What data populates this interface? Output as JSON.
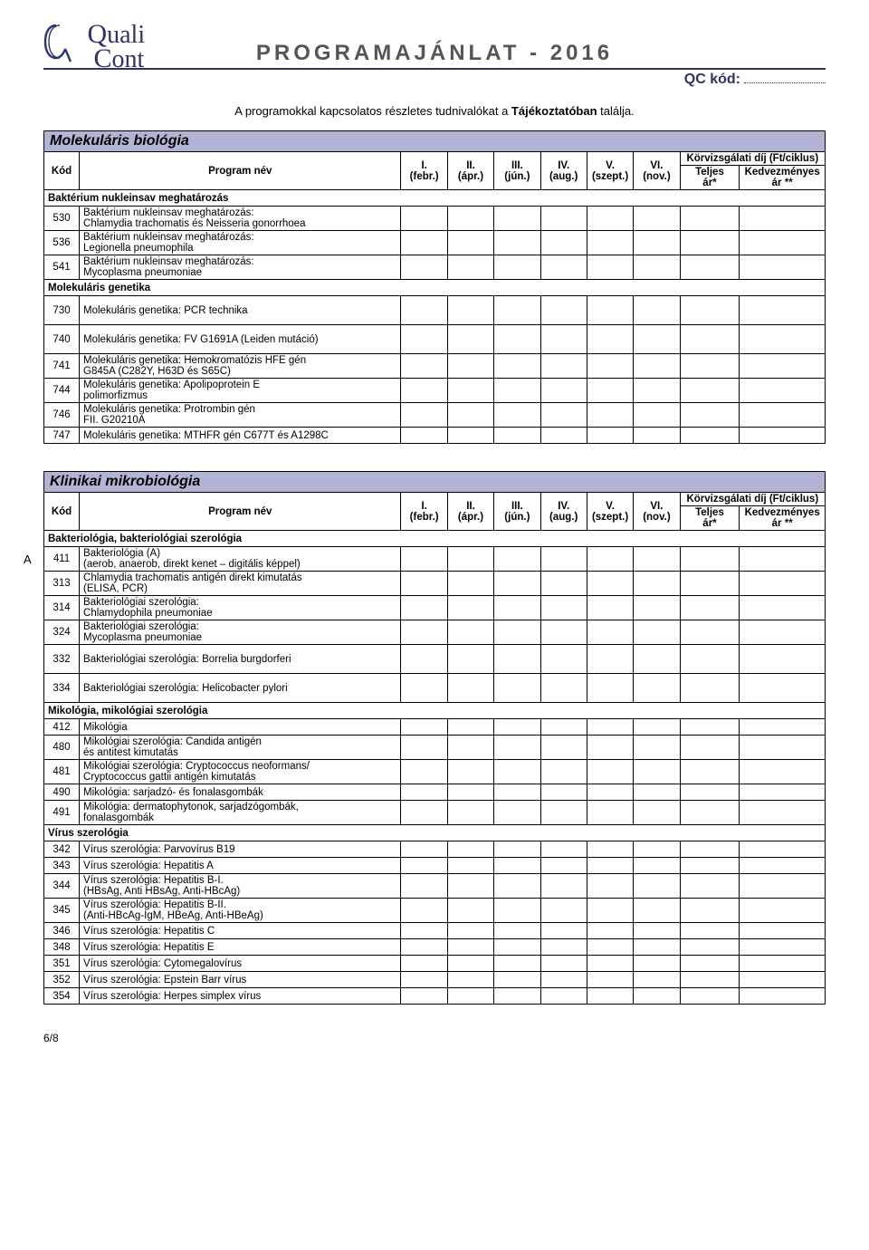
{
  "header": {
    "logo_top": "uali",
    "logo_bot": "ont",
    "logo_q_top": "Q",
    "logo_c_bot": "C",
    "title": "PROGRAMAJÁNLAT - 2016",
    "qc_label": "QC kód:"
  },
  "intro_prefix": "A programokkal kapcsolatos részletes tudnivalókat a ",
  "intro_bold": "Tájékoztatóban",
  "intro_suffix": " találja.",
  "columns": {
    "kod": "Kód",
    "program": "Program név",
    "m1": "I.",
    "m1s": "(febr.)",
    "m2": "II.",
    "m2s": "(ápr.)",
    "m3": "III.",
    "m3s": "(jún.)",
    "m4": "IV.",
    "m4s": "(aug.)",
    "m5": "V.",
    "m5s": "(szept.)",
    "m6": "VI.",
    "m6s": "(nov.)",
    "fee_title": "Körvizsgálati díj (Ft/ciklus)",
    "teljes": "Teljes",
    "teljes_sub": "ár*",
    "kedv": "Kedvezményes",
    "kedv_sub": "ár **"
  },
  "section1_title": "Molekuláris biológia",
  "section1_sub1": "Baktérium nukleinsav meghatározás",
  "section1_rows_a": [
    {
      "code": "530",
      "name": "Baktérium nukleinsav meghatározás:\nChlamydia trachomatis és Neisseria gonorrhoea"
    },
    {
      "code": "536",
      "name": "Baktérium nukleinsav meghatározás:\nLegionella pneumophila"
    },
    {
      "code": "541",
      "name": "Baktérium nukleinsav meghatározás:\nMycoplasma pneumoniae"
    }
  ],
  "section1_sub2": "Molekuláris genetika",
  "section1_rows_b": [
    {
      "code": "730",
      "name": "Molekuláris genetika: PCR technika"
    },
    {
      "code": "740",
      "name": "Molekuláris genetika: FV G1691A (Leiden mutáció)"
    },
    {
      "code": "741",
      "name": "Molekuláris genetika: Hemokromatózis HFE gén\nG845A (C282Y, H63D és S65C)"
    },
    {
      "code": "744",
      "name": "Molekuláris genetika: Apolipoprotein E\npolimorfizmus"
    },
    {
      "code": "746",
      "name": "Molekuláris genetika: Protrombin gén\nFII. G20210A"
    },
    {
      "code": "747",
      "name": "Molekuláris genetika: MTHFR gén C677T és A1298C"
    }
  ],
  "section2_title": "Klinikai mikrobiológia",
  "section2_marker": "A",
  "section2_sub1": "Bakteriológia, bakteriológiai szerológia",
  "section2_rows_a": [
    {
      "code": "411",
      "name": "Bakteriológia (A)\n(aerob, anaerob, direkt kenet – digitális képpel)"
    },
    {
      "code": "313",
      "name": "Chlamydia trachomatis antigén direkt kimutatás\n(ELISA, PCR)"
    },
    {
      "code": "314",
      "name": "Bakteriológiai szerológia:\nChlamydophila pneumoniae"
    },
    {
      "code": "324",
      "name": "Bakteriológiai szerológia:\nMycoplasma pneumoniae"
    },
    {
      "code": "332",
      "name": "Bakteriológiai szerológia: Borrelia burgdorferi"
    },
    {
      "code": "334",
      "name": "Bakteriológiai szerológia: Helicobacter pylori"
    }
  ],
  "section2_sub2": "Mikológia, mikológiai szerológia",
  "section2_rows_b": [
    {
      "code": "412",
      "name": "Mikológia"
    },
    {
      "code": "480",
      "name": "Mikológiai szerológia: Candida antigén\nés antitest kimutatás"
    },
    {
      "code": "481",
      "name": "Mikológiai szerológia: Cryptococcus neoformans/\nCryptococcus gattii antigén kimutatás"
    },
    {
      "code": "490",
      "name": "Mikológia: sarjadzó- és fonalasgombák"
    },
    {
      "code": "491",
      "name": "Mikológia: dermatophytonok, sarjadzógombák,\nfonalasgombák"
    }
  ],
  "section2_sub3": "Vírus szerológia",
  "section2_rows_c": [
    {
      "code": "342",
      "name": "Vírus szerológia: Parvovírus B19"
    },
    {
      "code": "343",
      "name": "Vírus szerológia: Hepatitis A"
    },
    {
      "code": "344",
      "name": "Vírus szerológia: Hepatitis B-I.\n(HBsAg, Anti HBsAg, Anti-HBcAg)"
    },
    {
      "code": "345",
      "name": "Vírus szerológia: Hepatitis B-II.\n(Anti-HBcAg-IgM, HBeAg, Anti-HBeAg)"
    },
    {
      "code": "346",
      "name": "Vírus szerológia: Hepatitis C"
    },
    {
      "code": "348",
      "name": "Vírus szerológia: Hepatitis E"
    },
    {
      "code": "351",
      "name": "Vírus szerológia: Cytomegalovírus"
    },
    {
      "code": "352",
      "name": "Vírus szerológia: Epstein Barr vírus"
    },
    {
      "code": "354",
      "name": "Vírus szerológia: Herpes simplex vírus"
    }
  ],
  "footer": "6/8"
}
